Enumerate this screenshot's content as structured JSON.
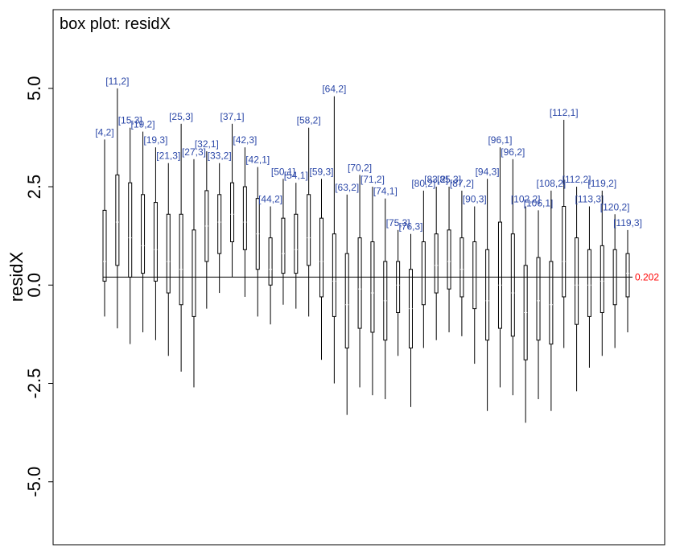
{
  "chart_data": {
    "type": "box",
    "title": "box plot: residX",
    "ylabel": "residX",
    "ylim": [
      -6.6,
      7.0
    ],
    "yticks": [
      {
        "value": 5.0,
        "label": "5.0"
      },
      {
        "value": 2.5,
        "label": "2.5"
      },
      {
        "value": 0.0,
        "label": "0.0"
      },
      {
        "value": -2.5,
        "label": "-2.5"
      },
      {
        "value": -5.0,
        "label": "-5.0"
      }
    ],
    "reference_line": {
      "value": 0.202,
      "label": "0.202",
      "color": "#ff0000"
    },
    "colors": {
      "box": "#000000",
      "label": "#2c48a8",
      "reference": "#ff0000"
    },
    "boxes": [
      {
        "label": "[4,2]",
        "min": -0.8,
        "q1": 0.1,
        "median": 0.6,
        "q3": 1.9,
        "max": 3.7
      },
      {
        "label": "[11,2]",
        "min": -1.1,
        "q1": 0.5,
        "median": 1.6,
        "q3": 2.8,
        "max": 5.0
      },
      {
        "label": "[15,3]",
        "min": -1.5,
        "q1": 0.2,
        "median": 1.2,
        "q3": 2.6,
        "max": 4.0
      },
      {
        "label": "[19,2]",
        "min": -1.2,
        "q1": 0.3,
        "median": 1.0,
        "q3": 2.3,
        "max": 3.9
      },
      {
        "label": "[19,3]",
        "min": -1.4,
        "q1": 0.1,
        "median": 0.9,
        "q3": 2.1,
        "max": 3.5
      },
      {
        "label": "[21,3]",
        "min": -1.8,
        "q1": -0.2,
        "median": 0.6,
        "q3": 1.8,
        "max": 3.1
      },
      {
        "label": "[25,3]",
        "min": -2.2,
        "q1": -0.5,
        "median": 0.4,
        "q3": 1.8,
        "max": 4.1
      },
      {
        "label": "[27,3]",
        "min": -2.6,
        "q1": -0.8,
        "median": 0.2,
        "q3": 1.4,
        "max": 3.2
      },
      {
        "label": "[32,1]",
        "min": -0.6,
        "q1": 0.6,
        "median": 1.5,
        "q3": 2.4,
        "max": 3.4
      },
      {
        "label": "[33,2]",
        "min": -0.2,
        "q1": 0.8,
        "median": 1.6,
        "q3": 2.3,
        "max": 3.1
      },
      {
        "label": "[37,1]",
        "min": 0.2,
        "q1": 1.1,
        "median": 1.8,
        "q3": 2.6,
        "max": 4.1
      },
      {
        "label": "[42,3]",
        "min": -0.3,
        "q1": 0.9,
        "median": 1.6,
        "q3": 2.5,
        "max": 3.5
      },
      {
        "label": "[42,1]",
        "min": -0.8,
        "q1": 0.4,
        "median": 1.3,
        "q3": 2.2,
        "max": 3.0
      },
      {
        "label": "[44,2]",
        "min": -1.0,
        "q1": 0.0,
        "median": 0.4,
        "q3": 1.2,
        "max": 2.0
      },
      {
        "label": "[50,1]",
        "min": -0.5,
        "q1": 0.3,
        "median": 0.8,
        "q3": 1.7,
        "max": 2.7
      },
      {
        "label": "[54,1]",
        "min": -0.6,
        "q1": 0.3,
        "median": 0.9,
        "q3": 1.8,
        "max": 2.6
      },
      {
        "label": "[58,2]",
        "min": -0.8,
        "q1": 0.5,
        "median": 1.2,
        "q3": 2.3,
        "max": 4.0
      },
      {
        "label": "[59,3]",
        "min": -1.9,
        "q1": -0.3,
        "median": 0.6,
        "q3": 1.7,
        "max": 2.7
      },
      {
        "label": "[64,2]",
        "min": -2.5,
        "q1": -0.8,
        "median": 0.1,
        "q3": 1.3,
        "max": 4.8
      },
      {
        "label": "[63,2]",
        "min": -3.3,
        "q1": -1.6,
        "median": -0.5,
        "q3": 0.8,
        "max": 2.3
      },
      {
        "label": "[70,2]",
        "min": -2.6,
        "q1": -1.1,
        "median": -0.1,
        "q3": 1.2,
        "max": 2.8
      },
      {
        "label": "[71,2]",
        "min": -2.8,
        "q1": -1.2,
        "median": -0.2,
        "q3": 1.1,
        "max": 2.5
      },
      {
        "label": "[74,1]",
        "min": -2.9,
        "q1": -1.4,
        "median": -0.4,
        "q3": 0.6,
        "max": 2.2
      },
      {
        "label": "[75,3]",
        "min": -1.8,
        "q1": -0.7,
        "median": 0.0,
        "q3": 0.6,
        "max": 1.4
      },
      {
        "label": "[76,3]",
        "min": -3.1,
        "q1": -1.6,
        "median": -0.6,
        "q3": 0.4,
        "max": 1.3
      },
      {
        "label": "[80,2]",
        "min": -1.6,
        "q1": -0.5,
        "median": 0.2,
        "q3": 1.1,
        "max": 2.4
      },
      {
        "label": "[83,2]",
        "min": -1.4,
        "q1": -0.2,
        "median": 0.5,
        "q3": 1.3,
        "max": 2.5
      },
      {
        "label": "[85,3]",
        "min": -1.2,
        "q1": -0.1,
        "median": 0.6,
        "q3": 1.4,
        "max": 2.5
      },
      {
        "label": "[87,2]",
        "min": -1.3,
        "q1": -0.3,
        "median": 0.4,
        "q3": 1.2,
        "max": 2.4
      },
      {
        "label": "[90,3]",
        "min": -2.0,
        "q1": -0.6,
        "median": 0.2,
        "q3": 1.1,
        "max": 2.0
      },
      {
        "label": "[94,3]",
        "min": -3.2,
        "q1": -1.4,
        "median": -0.4,
        "q3": 0.9,
        "max": 2.7
      },
      {
        "label": "[96,1]",
        "min": -2.6,
        "q1": -1.1,
        "median": 0.0,
        "q3": 1.6,
        "max": 3.5
      },
      {
        "label": "[96,2]",
        "min": -2.8,
        "q1": -1.3,
        "median": -0.2,
        "q3": 1.3,
        "max": 3.2
      },
      {
        "label": "[102,2]",
        "min": -3.5,
        "q1": -1.9,
        "median": -0.7,
        "q3": 0.5,
        "max": 2.0
      },
      {
        "label": "[106,1]",
        "min": -2.9,
        "q1": -1.4,
        "median": -0.4,
        "q3": 0.7,
        "max": 1.9
      },
      {
        "label": "[108,2]",
        "min": -3.2,
        "q1": -1.5,
        "median": -0.5,
        "q3": 0.6,
        "max": 2.4
      },
      {
        "label": "[112,1]",
        "min": -1.6,
        "q1": -0.3,
        "median": 0.6,
        "q3": 2.0,
        "max": 4.2
      },
      {
        "label": "[112,2]",
        "min": -2.7,
        "q1": -1.0,
        "median": 0.0,
        "q3": 1.2,
        "max": 2.5
      },
      {
        "label": "[113,3]",
        "min": -2.1,
        "q1": -0.8,
        "median": 0.0,
        "q3": 0.9,
        "max": 2.0
      },
      {
        "label": "[119,2]",
        "min": -1.8,
        "q1": -0.7,
        "median": 0.1,
        "q3": 1.0,
        "max": 2.4
      },
      {
        "label": "[120,2]",
        "min": -1.6,
        "q1": -0.5,
        "median": 0.2,
        "q3": 0.9,
        "max": 1.8
      },
      {
        "label": "[119,3]",
        "min": -1.2,
        "q1": -0.3,
        "median": 0.3,
        "q3": 0.8,
        "max": 1.4
      }
    ]
  }
}
